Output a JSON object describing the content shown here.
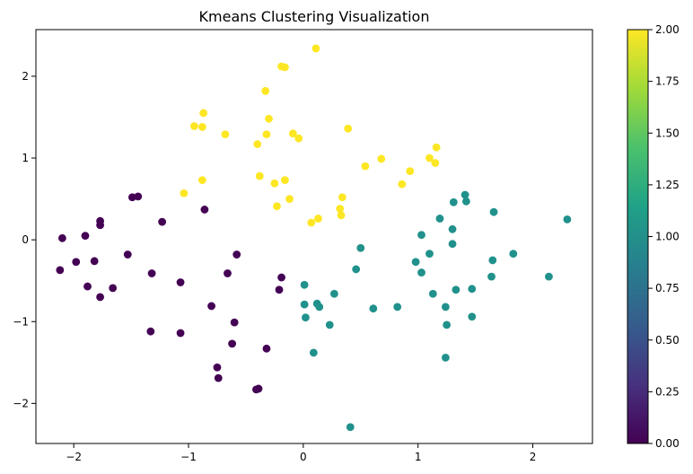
{
  "chart_data": {
    "type": "scatter",
    "title": "Kmeans Clustering Visualization",
    "xlabel": "",
    "ylabel": "",
    "xlim": [
      -2.33,
      2.52
    ],
    "ylim": [
      -2.49,
      2.57
    ],
    "xticks": [
      -2,
      -1,
      0,
      1,
      2
    ],
    "xtick_labels": [
      "−2",
      "−1",
      "0",
      "1",
      "2"
    ],
    "yticks": [
      -2,
      -1,
      0,
      1,
      2
    ],
    "ytick_labels": [
      "−2",
      "−1",
      "0",
      "1",
      "2"
    ],
    "grid": false,
    "colormap": "viridis",
    "colorbar": {
      "range": [
        0.0,
        2.0
      ],
      "ticks": [
        0.0,
        0.25,
        0.5,
        0.75,
        1.0,
        1.25,
        1.5,
        1.75,
        2.0
      ],
      "tick_labels": [
        "0.00",
        "0.25",
        "0.50",
        "0.75",
        "1.00",
        "1.25",
        "1.50",
        "1.75",
        "2.00"
      ],
      "stops": [
        "#440154",
        "#46327e",
        "#365c8d",
        "#277f8e",
        "#1fa187",
        "#4ac16d",
        "#a0da39",
        "#fde725"
      ]
    },
    "cluster_colors": {
      "0": "#440154",
      "1": "#21918c",
      "2": "#fde725"
    },
    "points": [
      {
        "x": -2.1,
        "y": 0.02,
        "c": 0
      },
      {
        "x": -2.12,
        "y": -0.37,
        "c": 0
      },
      {
        "x": -1.98,
        "y": -0.27,
        "c": 0
      },
      {
        "x": -1.9,
        "y": 0.05,
        "c": 0
      },
      {
        "x": -1.88,
        "y": -0.57,
        "c": 0
      },
      {
        "x": -1.82,
        "y": -0.26,
        "c": 0
      },
      {
        "x": -1.77,
        "y": 0.23,
        "c": 0
      },
      {
        "x": -1.77,
        "y": 0.18,
        "c": 0
      },
      {
        "x": -1.77,
        "y": -0.7,
        "c": 0
      },
      {
        "x": -1.66,
        "y": -0.59,
        "c": 0
      },
      {
        "x": -1.53,
        "y": -0.18,
        "c": 0
      },
      {
        "x": -1.49,
        "y": 0.52,
        "c": 0
      },
      {
        "x": -1.44,
        "y": 0.53,
        "c": 0
      },
      {
        "x": -1.32,
        "y": -0.41,
        "c": 0
      },
      {
        "x": -1.33,
        "y": -1.12,
        "c": 0
      },
      {
        "x": -1.23,
        "y": 0.22,
        "c": 0
      },
      {
        "x": -1.07,
        "y": -0.52,
        "c": 0
      },
      {
        "x": -1.07,
        "y": -1.14,
        "c": 0
      },
      {
        "x": -0.86,
        "y": 0.37,
        "c": 0
      },
      {
        "x": -0.8,
        "y": -0.81,
        "c": 0
      },
      {
        "x": -0.75,
        "y": -1.56,
        "c": 0
      },
      {
        "x": -0.74,
        "y": -1.69,
        "c": 0
      },
      {
        "x": -0.66,
        "y": -0.41,
        "c": 0
      },
      {
        "x": -0.62,
        "y": -1.27,
        "c": 0
      },
      {
        "x": -0.6,
        "y": -1.01,
        "c": 0
      },
      {
        "x": -0.58,
        "y": -0.18,
        "c": 0
      },
      {
        "x": -0.41,
        "y": -1.83,
        "c": 0
      },
      {
        "x": -0.39,
        "y": -1.82,
        "c": 0
      },
      {
        "x": -0.32,
        "y": -1.33,
        "c": 0
      },
      {
        "x": -0.21,
        "y": -0.61,
        "c": 0
      },
      {
        "x": -0.19,
        "y": -0.46,
        "c": 0
      },
      {
        "x": 0.01,
        "y": -0.55,
        "c": 1
      },
      {
        "x": 0.01,
        "y": -0.79,
        "c": 1
      },
      {
        "x": 0.02,
        "y": -0.95,
        "c": 1
      },
      {
        "x": 0.12,
        "y": -0.78,
        "c": 1
      },
      {
        "x": 0.14,
        "y": -0.82,
        "c": 1
      },
      {
        "x": 0.09,
        "y": -1.38,
        "c": 1
      },
      {
        "x": 0.23,
        "y": -1.04,
        "c": 1
      },
      {
        "x": 0.27,
        "y": -0.66,
        "c": 1
      },
      {
        "x": 0.41,
        "y": -2.29,
        "c": 1
      },
      {
        "x": 0.46,
        "y": -0.36,
        "c": 1
      },
      {
        "x": 0.5,
        "y": -0.1,
        "c": 1
      },
      {
        "x": 0.61,
        "y": -0.84,
        "c": 1
      },
      {
        "x": 0.82,
        "y": -0.82,
        "c": 1
      },
      {
        "x": 0.98,
        "y": -0.27,
        "c": 1
      },
      {
        "x": 1.03,
        "y": -0.4,
        "c": 1
      },
      {
        "x": 1.03,
        "y": 0.06,
        "c": 1
      },
      {
        "x": 1.1,
        "y": -0.17,
        "c": 1
      },
      {
        "x": 1.13,
        "y": -0.66,
        "c": 1
      },
      {
        "x": 1.19,
        "y": 0.26,
        "c": 1
      },
      {
        "x": 1.24,
        "y": -0.82,
        "c": 1
      },
      {
        "x": 1.25,
        "y": -1.04,
        "c": 1
      },
      {
        "x": 1.24,
        "y": -1.44,
        "c": 1
      },
      {
        "x": 1.3,
        "y": 0.13,
        "c": 1
      },
      {
        "x": 1.3,
        "y": -0.05,
        "c": 1
      },
      {
        "x": 1.31,
        "y": 0.46,
        "c": 1
      },
      {
        "x": 1.33,
        "y": -0.61,
        "c": 1
      },
      {
        "x": 1.41,
        "y": 0.55,
        "c": 1
      },
      {
        "x": 1.42,
        "y": 0.47,
        "c": 1
      },
      {
        "x": 1.47,
        "y": -0.6,
        "c": 1
      },
      {
        "x": 1.47,
        "y": -0.94,
        "c": 1
      },
      {
        "x": 1.64,
        "y": -0.45,
        "c": 1
      },
      {
        "x": 1.65,
        "y": -0.25,
        "c": 1
      },
      {
        "x": 1.66,
        "y": 0.34,
        "c": 1
      },
      {
        "x": 1.83,
        "y": -0.17,
        "c": 1
      },
      {
        "x": 2.14,
        "y": -0.45,
        "c": 1
      },
      {
        "x": 2.3,
        "y": 0.25,
        "c": 1
      },
      {
        "x": 0.11,
        "y": 2.34,
        "c": 2
      },
      {
        "x": -0.19,
        "y": 2.12,
        "c": 2
      },
      {
        "x": -0.16,
        "y": 2.11,
        "c": 2
      },
      {
        "x": -0.33,
        "y": 1.82,
        "c": 2
      },
      {
        "x": -0.87,
        "y": 1.55,
        "c": 2
      },
      {
        "x": -0.3,
        "y": 1.48,
        "c": 2
      },
      {
        "x": -0.95,
        "y": 1.39,
        "c": 2
      },
      {
        "x": -0.88,
        "y": 1.38,
        "c": 2
      },
      {
        "x": 0.39,
        "y": 1.36,
        "c": 2
      },
      {
        "x": -0.09,
        "y": 1.3,
        "c": 2
      },
      {
        "x": -0.32,
        "y": 1.29,
        "c": 2
      },
      {
        "x": -0.68,
        "y": 1.29,
        "c": 2
      },
      {
        "x": -0.04,
        "y": 1.24,
        "c": 2
      },
      {
        "x": -0.4,
        "y": 1.17,
        "c": 2
      },
      {
        "x": 1.16,
        "y": 1.13,
        "c": 2
      },
      {
        "x": 1.1,
        "y": 1.0,
        "c": 2
      },
      {
        "x": 0.68,
        "y": 0.99,
        "c": 2
      },
      {
        "x": 1.15,
        "y": 0.94,
        "c": 2
      },
      {
        "x": 0.54,
        "y": 0.9,
        "c": 2
      },
      {
        "x": 0.93,
        "y": 0.84,
        "c": 2
      },
      {
        "x": -0.38,
        "y": 0.78,
        "c": 2
      },
      {
        "x": -0.16,
        "y": 0.73,
        "c": 2
      },
      {
        "x": -0.88,
        "y": 0.73,
        "c": 2
      },
      {
        "x": -0.25,
        "y": 0.69,
        "c": 2
      },
      {
        "x": 0.86,
        "y": 0.68,
        "c": 2
      },
      {
        "x": -1.04,
        "y": 0.57,
        "c": 2
      },
      {
        "x": 0.34,
        "y": 0.52,
        "c": 2
      },
      {
        "x": -0.12,
        "y": 0.5,
        "c": 2
      },
      {
        "x": -0.23,
        "y": 0.41,
        "c": 2
      },
      {
        "x": 0.32,
        "y": 0.38,
        "c": 2
      },
      {
        "x": 0.33,
        "y": 0.3,
        "c": 2
      },
      {
        "x": 0.13,
        "y": 0.26,
        "c": 2
      },
      {
        "x": 0.07,
        "y": 0.21,
        "c": 2
      }
    ]
  }
}
